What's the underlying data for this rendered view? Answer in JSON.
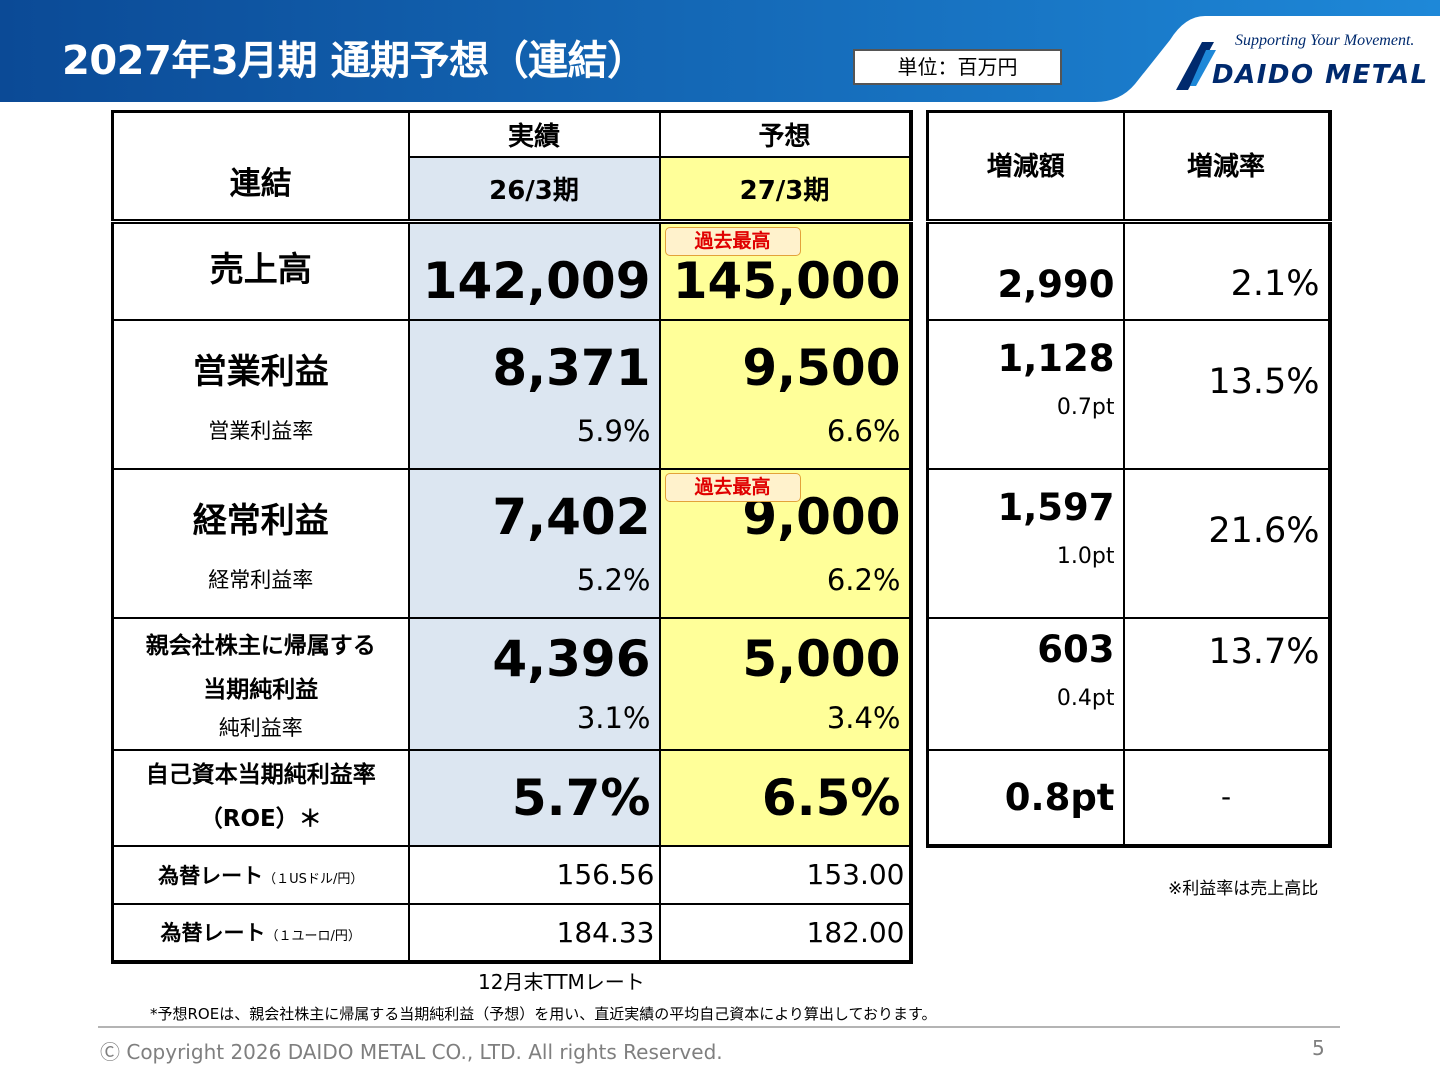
{
  "header": {
    "title": "2027年3月期 通期予想（連結）",
    "unit": "単位：百万円",
    "logo_tagline": "Supporting Your Movement.",
    "logo_name": "DAIDO METAL",
    "colors": {
      "bar_dark": "#0b4a96",
      "bar_light": "#1e88d8",
      "logo": "#002a6e"
    }
  },
  "main_table": {
    "corner_label": "連結",
    "actual_label": "実績",
    "forecast_label": "予想",
    "actual_period": "26/3期",
    "forecast_period": "27/3期",
    "record_badge": "過去最高",
    "rows": {
      "sales": {
        "label": "売上高",
        "actual": "142,009",
        "forecast": "145,000"
      },
      "operating": {
        "label": "営業利益",
        "sub_label": "営業利益率",
        "actual": "8,371",
        "forecast": "9,500",
        "actual_rate": "5.9%",
        "forecast_rate": "6.6%"
      },
      "ordinary": {
        "label": "経常利益",
        "sub_label": "経常利益率",
        "actual": "7,402",
        "forecast": "9,000",
        "actual_rate": "5.2%",
        "forecast_rate": "6.2%"
      },
      "net": {
        "label_line1": "親会社株主に帰属する",
        "label_line2": "当期純利益",
        "sub_label": "純利益率",
        "actual": "4,396",
        "forecast": "5,000",
        "actual_rate": "3.1%",
        "forecast_rate": "3.4%"
      },
      "roe": {
        "label_line1": "自己資本当期純利益率",
        "label_line2": "（ROE）＊",
        "actual": "5.7%",
        "forecast": "6.5%"
      },
      "fx_usd": {
        "label": "為替レート",
        "unit": "（１USドル/円）",
        "actual": "156.56",
        "forecast": "153.00"
      },
      "fx_eur": {
        "label": "為替レート",
        "unit": "（１ユーロ/円）",
        "actual": "184.33",
        "forecast": "182.00"
      }
    }
  },
  "change_table": {
    "amount_label": "増減額",
    "rate_label": "増減率",
    "rows": {
      "sales": {
        "amount": "2,990",
        "rate": "2.1%"
      },
      "operating": {
        "amount": "1,128",
        "pt": "0.7pt",
        "rate": "13.5%"
      },
      "ordinary": {
        "amount": "1,597",
        "pt": "1.0pt",
        "rate": "21.6%"
      },
      "net": {
        "amount": "603",
        "pt": "0.4pt",
        "rate": "13.7%"
      },
      "roe": {
        "amount": "0.8pt",
        "rate": "-"
      }
    }
  },
  "notes": {
    "ttm": "12月末TTMレート",
    "ratio": "※利益率は売上高比",
    "roe": "*予想ROEは、親会社株主に帰属する当期純利益（予想）を用い、直近実績の平均自己資本により算出しております。"
  },
  "footer": {
    "copyright": "Ⓒ Copyright 2026 DAIDO METAL CO., LTD. All rights Reserved.",
    "page_number": "5"
  }
}
